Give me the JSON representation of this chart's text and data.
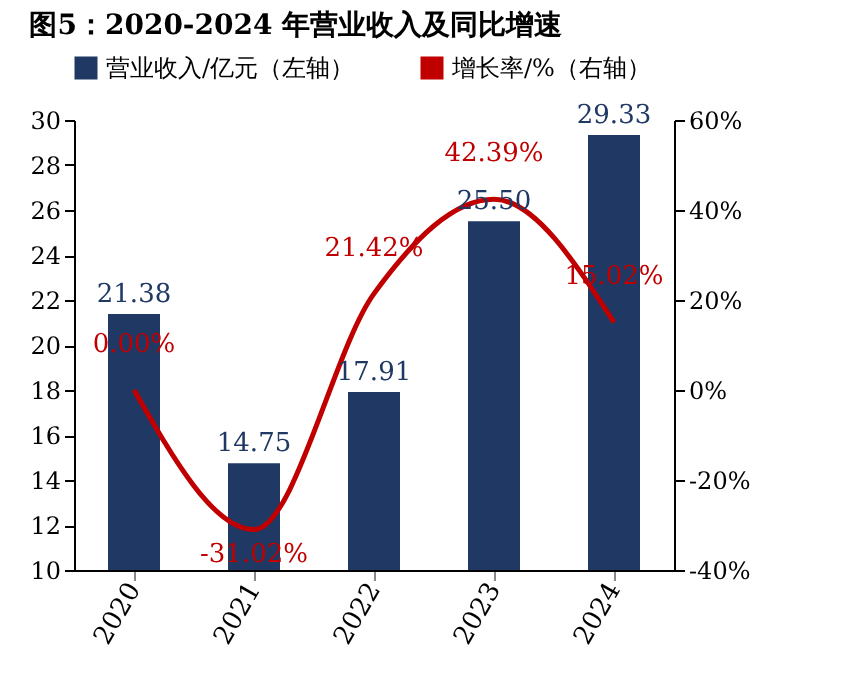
{
  "chart_data": {
    "type": "bar",
    "title": "图5：2020-2024 年营业收入及同比增速",
    "categories": [
      "2020",
      "2021",
      "2022",
      "2023",
      "2024"
    ],
    "series": [
      {
        "name": "营业收入/亿元（左轴）",
        "color": "#1f3864",
        "values": [
          21.38,
          14.75,
          17.91,
          25.5,
          29.33
        ],
        "value_labels": [
          "21.38",
          "14.75",
          "17.91",
          "25.50",
          "29.33"
        ]
      },
      {
        "name": "增长率/%（右轴）",
        "type": "line",
        "axis": "y2",
        "color": "#c00000",
        "values": [
          0,
          -31.02,
          21.42,
          42.39,
          15.02
        ],
        "value_labels": [
          "0.00%",
          "-31.02%",
          "21.42%",
          "42.39%",
          "15.02%"
        ]
      }
    ],
    "ylim": [
      10,
      30
    ],
    "yticks": [
      10,
      12,
      14,
      16,
      18,
      20,
      22,
      24,
      26,
      28,
      30
    ],
    "y2lim": [
      -40,
      60
    ],
    "y2ticks": [
      {
        "value": -40,
        "label": "-40%"
      },
      {
        "value": -20,
        "label": "-20%"
      },
      {
        "value": 0,
        "label": "0%"
      },
      {
        "value": 20,
        "label": "20%"
      },
      {
        "value": 40,
        "label": "40%"
      },
      {
        "value": 60,
        "label": "60%"
      }
    ],
    "legend": "top",
    "grid": false
  }
}
